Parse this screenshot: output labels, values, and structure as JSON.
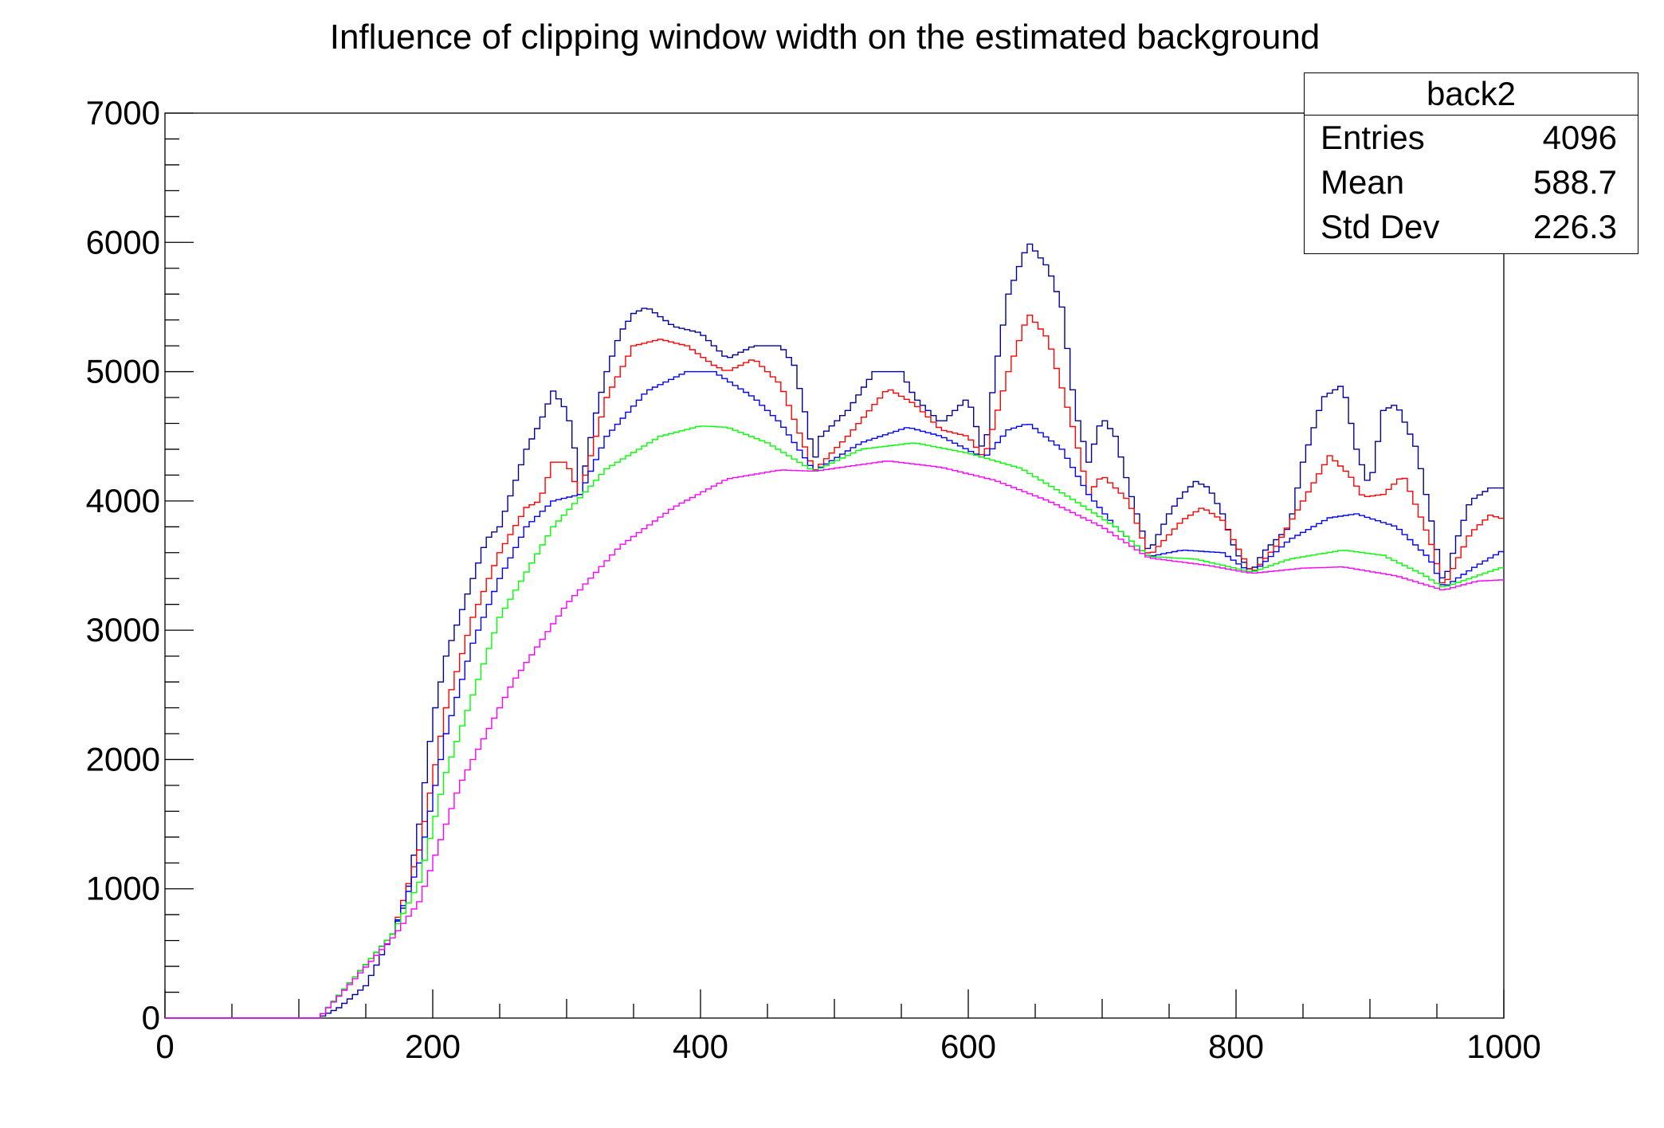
{
  "chart_data": {
    "type": "line",
    "title": "Influence of clipping window width on the estimated background",
    "xlabel": "",
    "ylabel": "",
    "xlim": [
      0,
      1000
    ],
    "ylim": [
      0,
      7000
    ],
    "xticks": [
      0,
      200,
      400,
      600,
      800,
      1000
    ],
    "yticks": [
      0,
      1000,
      2000,
      3000,
      4000,
      5000,
      6000,
      7000
    ],
    "grid": false,
    "draw_style": "histogram-steps",
    "series": [
      {
        "color": "#000099",
        "points": [
          [
            0,
            0
          ],
          [
            115,
            0
          ],
          [
            130,
            80
          ],
          [
            150,
            250
          ],
          [
            170,
            650
          ],
          [
            180,
            900
          ],
          [
            190,
            1500
          ],
          [
            200,
            2300
          ],
          [
            210,
            2800
          ],
          [
            220,
            3100
          ],
          [
            230,
            3400
          ],
          [
            240,
            3700
          ],
          [
            250,
            3800
          ],
          [
            260,
            4100
          ],
          [
            270,
            4400
          ],
          [
            280,
            4600
          ],
          [
            290,
            4850
          ],
          [
            300,
            4700
          ],
          [
            305,
            4500
          ],
          [
            310,
            4050
          ],
          [
            320,
            4600
          ],
          [
            330,
            5000
          ],
          [
            340,
            5300
          ],
          [
            350,
            5450
          ],
          [
            360,
            5500
          ],
          [
            380,
            5350
          ],
          [
            400,
            5300
          ],
          [
            420,
            5100
          ],
          [
            440,
            5200
          ],
          [
            460,
            5200
          ],
          [
            470,
            5050
          ],
          [
            480,
            4600
          ],
          [
            485,
            4300
          ],
          [
            490,
            4500
          ],
          [
            510,
            4700
          ],
          [
            530,
            5000
          ],
          [
            550,
            5000
          ],
          [
            560,
            4800
          ],
          [
            580,
            4600
          ],
          [
            600,
            4800
          ],
          [
            612,
            4350
          ],
          [
            620,
            5000
          ],
          [
            630,
            5600
          ],
          [
            645,
            6000
          ],
          [
            660,
            5800
          ],
          [
            670,
            5500
          ],
          [
            680,
            4700
          ],
          [
            690,
            4300
          ],
          [
            700,
            4650
          ],
          [
            710,
            4500
          ],
          [
            720,
            4100
          ],
          [
            735,
            3600
          ],
          [
            750,
            3900
          ],
          [
            760,
            4050
          ],
          [
            770,
            4150
          ],
          [
            780,
            4100
          ],
          [
            790,
            3900
          ],
          [
            800,
            3600
          ],
          [
            812,
            3450
          ],
          [
            820,
            3600
          ],
          [
            840,
            3800
          ],
          [
            850,
            4300
          ],
          [
            865,
            4800
          ],
          [
            880,
            4900
          ],
          [
            890,
            4400
          ],
          [
            900,
            4100
          ],
          [
            910,
            4700
          ],
          [
            920,
            4750
          ],
          [
            935,
            4400
          ],
          [
            945,
            3900
          ],
          [
            955,
            3350
          ],
          [
            965,
            3700
          ],
          [
            975,
            4000
          ],
          [
            990,
            4100
          ],
          [
            1000,
            4100
          ]
        ]
      },
      {
        "color": "#ff0000",
        "points": [
          [
            0,
            0
          ],
          [
            115,
            0
          ],
          [
            170,
            650
          ],
          [
            190,
            1300
          ],
          [
            210,
            2400
          ],
          [
            230,
            3100
          ],
          [
            250,
            3600
          ],
          [
            270,
            3950
          ],
          [
            280,
            4000
          ],
          [
            290,
            4300
          ],
          [
            300,
            4300
          ],
          [
            310,
            4050
          ],
          [
            330,
            4800
          ],
          [
            350,
            5200
          ],
          [
            370,
            5250
          ],
          [
            390,
            5200
          ],
          [
            410,
            5050
          ],
          [
            420,
            5000
          ],
          [
            440,
            5100
          ],
          [
            460,
            4900
          ],
          [
            485,
            4230
          ],
          [
            510,
            4500
          ],
          [
            540,
            4870
          ],
          [
            560,
            4750
          ],
          [
            580,
            4550
          ],
          [
            600,
            4500
          ],
          [
            612,
            4330
          ],
          [
            630,
            5000
          ],
          [
            645,
            5450
          ],
          [
            660,
            5250
          ],
          [
            680,
            4500
          ],
          [
            690,
            4050
          ],
          [
            700,
            4200
          ],
          [
            720,
            4000
          ],
          [
            735,
            3570
          ],
          [
            760,
            3850
          ],
          [
            775,
            3950
          ],
          [
            790,
            3850
          ],
          [
            812,
            3440
          ],
          [
            830,
            3650
          ],
          [
            850,
            4000
          ],
          [
            870,
            4350
          ],
          [
            885,
            4200
          ],
          [
            895,
            4030
          ],
          [
            910,
            4050
          ],
          [
            925,
            4200
          ],
          [
            945,
            3700
          ],
          [
            955,
            3330
          ],
          [
            975,
            3750
          ],
          [
            990,
            3890
          ],
          [
            1000,
            3860
          ]
        ]
      },
      {
        "color": "#0000ff",
        "points": [
          [
            0,
            0
          ],
          [
            115,
            0
          ],
          [
            170,
            650
          ],
          [
            190,
            1200
          ],
          [
            210,
            2200
          ],
          [
            230,
            2900
          ],
          [
            250,
            3400
          ],
          [
            270,
            3800
          ],
          [
            290,
            4000
          ],
          [
            310,
            4050
          ],
          [
            330,
            4500
          ],
          [
            360,
            4850
          ],
          [
            390,
            5000
          ],
          [
            410,
            5000
          ],
          [
            440,
            4800
          ],
          [
            460,
            4600
          ],
          [
            485,
            4230
          ],
          [
            520,
            4450
          ],
          [
            555,
            4570
          ],
          [
            580,
            4500
          ],
          [
            612,
            4330
          ],
          [
            630,
            4550
          ],
          [
            645,
            4600
          ],
          [
            670,
            4400
          ],
          [
            690,
            4050
          ],
          [
            710,
            3800
          ],
          [
            735,
            3570
          ],
          [
            760,
            3620
          ],
          [
            790,
            3600
          ],
          [
            812,
            3440
          ],
          [
            840,
            3700
          ],
          [
            870,
            3870
          ],
          [
            890,
            3900
          ],
          [
            920,
            3800
          ],
          [
            945,
            3550
          ],
          [
            955,
            3330
          ],
          [
            980,
            3500
          ],
          [
            1000,
            3620
          ]
        ]
      },
      {
        "color": "#00ff00",
        "points": [
          [
            0,
            0
          ],
          [
            115,
            0
          ],
          [
            170,
            650
          ],
          [
            190,
            1050
          ],
          [
            210,
            1900
          ],
          [
            250,
            3100
          ],
          [
            290,
            3800
          ],
          [
            330,
            4250
          ],
          [
            370,
            4500
          ],
          [
            400,
            4580
          ],
          [
            420,
            4570
          ],
          [
            450,
            4450
          ],
          [
            485,
            4230
          ],
          [
            520,
            4400
          ],
          [
            560,
            4450
          ],
          [
            600,
            4370
          ],
          [
            640,
            4250
          ],
          [
            680,
            4000
          ],
          [
            710,
            3800
          ],
          [
            735,
            3570
          ],
          [
            770,
            3550
          ],
          [
            812,
            3450
          ],
          [
            840,
            3550
          ],
          [
            880,
            3620
          ],
          [
            910,
            3580
          ],
          [
            940,
            3430
          ],
          [
            955,
            3330
          ],
          [
            980,
            3420
          ],
          [
            1000,
            3490
          ]
        ]
      },
      {
        "color": "#ff00ff",
        "points": [
          [
            0,
            0
          ],
          [
            115,
            0
          ],
          [
            170,
            620
          ],
          [
            190,
            900
          ],
          [
            220,
            1800
          ],
          [
            260,
            2600
          ],
          [
            300,
            3200
          ],
          [
            340,
            3650
          ],
          [
            380,
            3950
          ],
          [
            420,
            4170
          ],
          [
            460,
            4240
          ],
          [
            485,
            4230
          ],
          [
            540,
            4310
          ],
          [
            580,
            4260
          ],
          [
            620,
            4160
          ],
          [
            660,
            4000
          ],
          [
            700,
            3800
          ],
          [
            735,
            3560
          ],
          [
            780,
            3500
          ],
          [
            812,
            3440
          ],
          [
            850,
            3480
          ],
          [
            880,
            3490
          ],
          [
            920,
            3420
          ],
          [
            955,
            3310
          ],
          [
            980,
            3380
          ],
          [
            1000,
            3390
          ]
        ]
      }
    ]
  },
  "stats_box": {
    "name": "back2",
    "rows": [
      {
        "label": "Entries",
        "value": "4096"
      },
      {
        "label": "Mean",
        "value": "588.7"
      },
      {
        "label": "Std Dev",
        "value": "226.3"
      }
    ]
  }
}
